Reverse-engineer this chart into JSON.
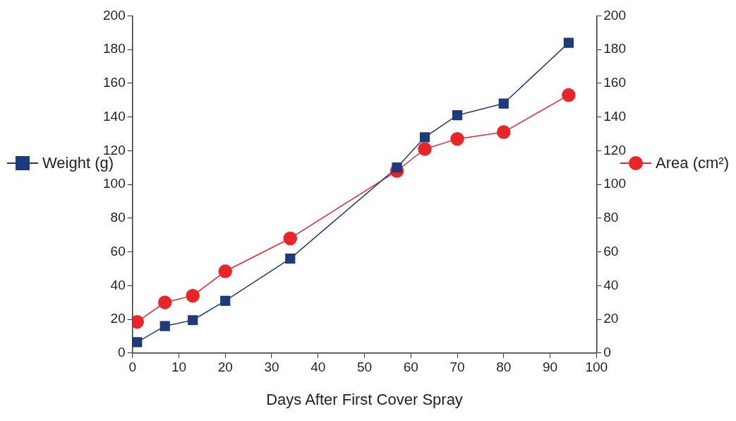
{
  "chart_data": {
    "type": "line",
    "xlabel": "Days After First Cover Spray",
    "x": [
      1,
      7,
      13,
      20,
      34,
      57,
      63,
      70,
      80,
      94
    ],
    "series": [
      {
        "name": "Weight (g)",
        "color": "#1f3a7a",
        "marker": "square",
        "values": [
          6.5,
          16,
          19.5,
          31,
          56,
          110,
          128,
          141,
          148,
          184
        ]
      },
      {
        "name": "Area (cm²)",
        "color": "#e8262a",
        "marker": "circle",
        "axis": "y2",
        "values": [
          18.5,
          30,
          34,
          48.5,
          68,
          108,
          121,
          127,
          131,
          153
        ]
      }
    ],
    "xlim": [
      0,
      100
    ],
    "xticks": [
      0,
      10,
      20,
      30,
      40,
      50,
      60,
      70,
      80,
      90,
      100
    ],
    "ylim": [
      0,
      200
    ],
    "yticks": [
      0,
      20,
      40,
      60,
      80,
      100,
      120,
      140,
      160,
      180,
      200
    ],
    "y2lim": [
      0,
      200
    ],
    "y2ticks": [
      0,
      20,
      40,
      60,
      80,
      100,
      120,
      140,
      160,
      180,
      200
    ],
    "grid": false,
    "legend": "left",
    "line_style": "solid"
  }
}
